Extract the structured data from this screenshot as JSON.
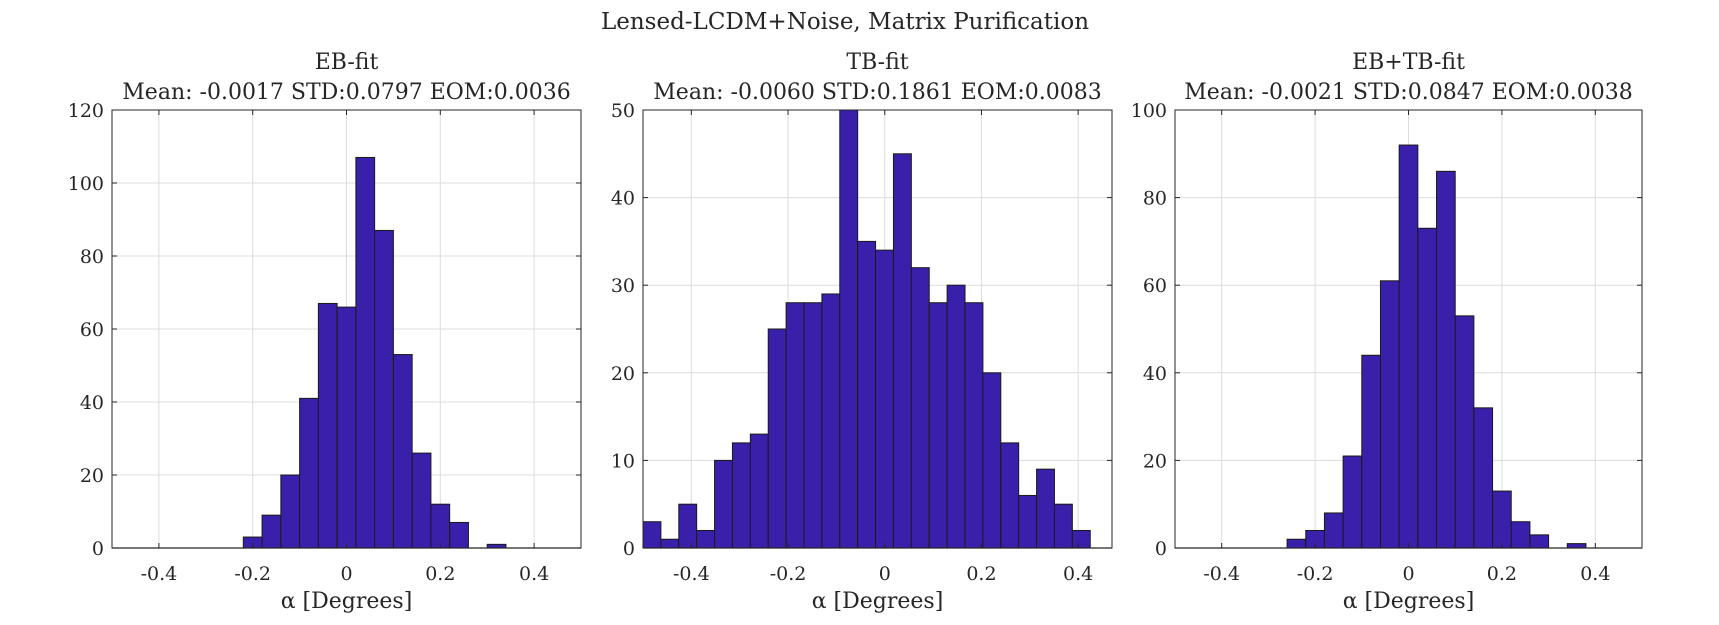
{
  "figure_title": "Lensed-LCDM+Noise, Matrix Purification",
  "colors": {
    "bar_fill": "#3a1faa",
    "bar_edge": "#1a1a1a",
    "grid": "#dcdcdc",
    "axis": "#262626",
    "text": "#262626"
  },
  "chart_data": [
    {
      "type": "bar",
      "title": "EB-fit",
      "subtitle": "Mean: -0.0017 STD:0.0797 EOM:0.0036",
      "xlabel": "α [Degrees]",
      "ylabel": "",
      "xlim": [
        -0.5,
        0.5
      ],
      "ylim": [
        0,
        120
      ],
      "xticks": [
        -0.4,
        -0.2,
        0,
        0.2,
        0.4
      ],
      "xtick_labels": [
        "-0.4",
        "-0.2",
        "0",
        "0.2",
        "0.4"
      ],
      "yticks": [
        0,
        20,
        40,
        60,
        80,
        100,
        120
      ],
      "ytick_labels": [
        "0",
        "20",
        "40",
        "60",
        "80",
        "100",
        "120"
      ],
      "grid": true,
      "bin_edges": [
        -0.5,
        -0.46,
        -0.42,
        -0.38,
        -0.34,
        -0.3,
        -0.26,
        -0.22,
        -0.18,
        -0.14,
        -0.1,
        -0.06,
        -0.02,
        0.02,
        0.06,
        0.1,
        0.14,
        0.18,
        0.22,
        0.26,
        0.3,
        0.34,
        0.38,
        0.42,
        0.46,
        0.5
      ],
      "values": [
        0,
        0,
        0,
        0,
        0,
        0,
        0,
        3,
        9,
        20,
        41,
        67,
        66,
        107,
        87,
        53,
        26,
        12,
        7,
        0,
        1,
        0,
        0,
        0,
        0
      ]
    },
    {
      "type": "bar",
      "title": "TB-fit",
      "subtitle": "Mean: -0.0060 STD:0.1861 EOM:0.0083",
      "xlabel": "α [Degrees]",
      "ylabel": "",
      "xlim": [
        -0.5,
        0.47
      ],
      "ylim": [
        0,
        50
      ],
      "xticks": [
        -0.4,
        -0.2,
        0,
        0.2,
        0.4
      ],
      "xtick_labels": [
        "-0.4",
        "-0.2",
        "0",
        "0.2",
        "0.4"
      ],
      "yticks": [
        0,
        10,
        20,
        30,
        40,
        50
      ],
      "ytick_labels": [
        "0",
        "10",
        "20",
        "30",
        "40",
        "50"
      ],
      "grid": true,
      "bin_edges": [
        -0.5,
        -0.463,
        -0.426,
        -0.389,
        -0.352,
        -0.315,
        -0.278,
        -0.241,
        -0.204,
        -0.167,
        -0.13,
        -0.093,
        -0.056,
        -0.019,
        0.018,
        0.055,
        0.092,
        0.129,
        0.166,
        0.203,
        0.24,
        0.277,
        0.314,
        0.351,
        0.388,
        0.425
      ],
      "values": [
        3,
        1,
        5,
        2,
        10,
        12,
        13,
        25,
        28,
        28,
        29,
        50,
        35,
        34,
        45,
        32,
        28,
        30,
        28,
        20,
        12,
        6,
        9,
        5,
        2
      ]
    },
    {
      "type": "bar",
      "title": "EB+TB-fit",
      "subtitle": "Mean: -0.0021 STD:0.0847 EOM:0.0038",
      "xlabel": "α [Degrees]",
      "ylabel": "",
      "xlim": [
        -0.5,
        0.5
      ],
      "ylim": [
        0,
        100
      ],
      "xticks": [
        -0.4,
        -0.2,
        0,
        0.2,
        0.4
      ],
      "xtick_labels": [
        "-0.4",
        "-0.2",
        "0",
        "0.2",
        "0.4"
      ],
      "yticks": [
        0,
        20,
        40,
        60,
        80,
        100
      ],
      "ytick_labels": [
        "0",
        "20",
        "40",
        "60",
        "80",
        "100"
      ],
      "grid": true,
      "bin_edges": [
        -0.5,
        -0.46,
        -0.42,
        -0.38,
        -0.34,
        -0.3,
        -0.26,
        -0.22,
        -0.18,
        -0.14,
        -0.1,
        -0.06,
        -0.02,
        0.02,
        0.06,
        0.1,
        0.14,
        0.18,
        0.22,
        0.26,
        0.3,
        0.34,
        0.38,
        0.42,
        0.46,
        0.5
      ],
      "values": [
        0,
        0,
        0,
        0,
        0,
        0,
        2,
        4,
        8,
        21,
        44,
        61,
        92,
        73,
        86,
        53,
        32,
        13,
        6,
        3,
        0,
        1,
        0,
        0,
        0
      ]
    }
  ]
}
